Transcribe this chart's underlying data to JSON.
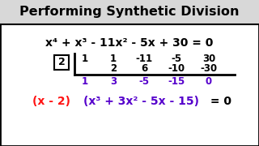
{
  "title": "Performing Synthetic Division",
  "title_color": "#000000",
  "bg_color": "#ffffff",
  "border_color": "#000000",
  "equation": "x⁴ + x³ - 11x² - 5x + 30 = 0",
  "divisor": "2",
  "row1": [
    "1",
    "1",
    "-11",
    "-5",
    "30"
  ],
  "row2": [
    "2",
    "6",
    "-10",
    "-30"
  ],
  "row3": [
    "1",
    "3",
    "-5",
    "-15",
    "0"
  ],
  "result_red": "(x - 2)",
  "result_purple": "(x³ + 3x² - 5x - 15)",
  "result_eq": " = 0",
  "red_color": "#ff1111",
  "purple_color": "#5500cc",
  "black_color": "#000000",
  "title_bg": "#d8d8d8",
  "title_fontsize": 11.5,
  "eq_fontsize": 10,
  "div_fontsize": 8.5,
  "result_fontsize": 10
}
